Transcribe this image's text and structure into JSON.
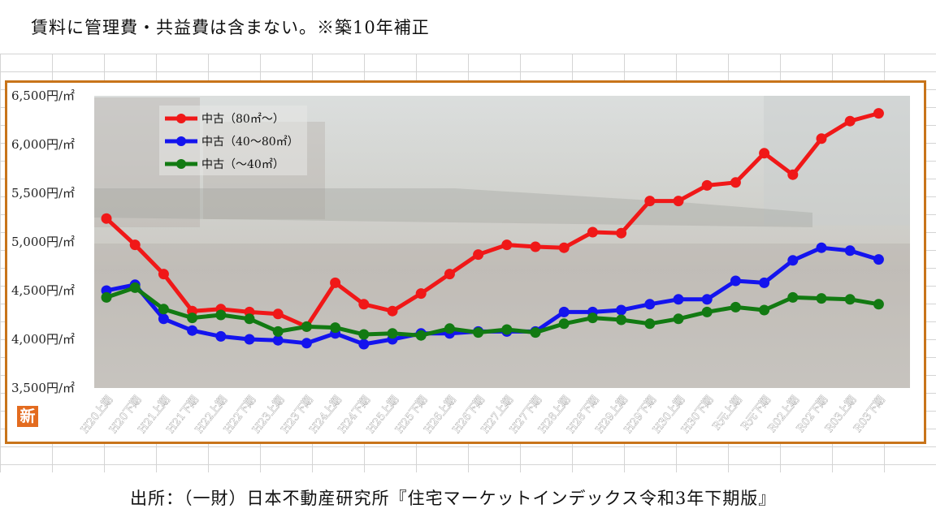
{
  "note": "賃料に管理費・共益費は含まない。※築10年補正",
  "source": "出所：（一財）日本不動産研究所『住宅マーケットインデックス令和3年下期版』",
  "badge": "新",
  "colors": {
    "series_red": "#f01818",
    "series_blue": "#1414ee",
    "series_green": "#127a12",
    "frame": "#c8741a"
  },
  "chart_data": {
    "type": "line",
    "xlabel": "",
    "ylabel": "",
    "ylim": [
      3500,
      6500
    ],
    "yticks": [
      {
        "value": 3500,
        "label": "3,500円/㎡"
      },
      {
        "value": 4000,
        "label": "4,000円/㎡"
      },
      {
        "value": 4500,
        "label": "4,500円/㎡"
      },
      {
        "value": 5000,
        "label": "5,000円/㎡"
      },
      {
        "value": 5500,
        "label": "5,500円/㎡"
      },
      {
        "value": 6000,
        "label": "6,000円/㎡"
      },
      {
        "value": 6500,
        "label": "6,500円/㎡"
      }
    ],
    "categories": [
      "H20上期",
      "H20下期",
      "H21上期",
      "H21下期",
      "H22上期",
      "H22下期",
      "H23上期",
      "H23下期",
      "H24上期",
      "H24下期",
      "H25上期",
      "H25下期",
      "H26上期",
      "H26下期",
      "H27上期",
      "H27下期",
      "H28上期",
      "H28下期",
      "H29上期",
      "H29下期",
      "H30上期",
      "H30下期",
      "R元上期",
      "R元下期",
      "R02上期",
      "R02下期",
      "R03上期",
      "R03下期"
    ],
    "legend_position": "top-left",
    "series": [
      {
        "name": "中古（80㎡～）",
        "color": "#f01818",
        "values": [
          5240,
          4970,
          4670,
          4290,
          4310,
          4280,
          4260,
          4130,
          4580,
          4360,
          4290,
          4470,
          4670,
          4870,
          4970,
          4950,
          4940,
          5100,
          5090,
          5420,
          5420,
          5580,
          5610,
          5910,
          5690,
          6060,
          6240,
          6320
        ]
      },
      {
        "name": "中古（40～80㎡）",
        "color": "#1414ee",
        "values": [
          4500,
          4560,
          4210,
          4090,
          4030,
          4000,
          3990,
          3960,
          4060,
          3950,
          4000,
          4060,
          4060,
          4080,
          4080,
          4080,
          4280,
          4280,
          4300,
          4360,
          4410,
          4410,
          4600,
          4580,
          4810,
          4940,
          4910,
          4820
        ]
      },
      {
        "name": "中古（～40㎡）",
        "color": "#127a12",
        "values": [
          4430,
          4530,
          4310,
          4220,
          4250,
          4210,
          4080,
          4130,
          4120,
          4050,
          4060,
          4040,
          4110,
          4070,
          4100,
          4070,
          4160,
          4220,
          4200,
          4160,
          4210,
          4280,
          4330,
          4300,
          4430,
          4420,
          4410,
          4360
        ]
      }
    ]
  }
}
